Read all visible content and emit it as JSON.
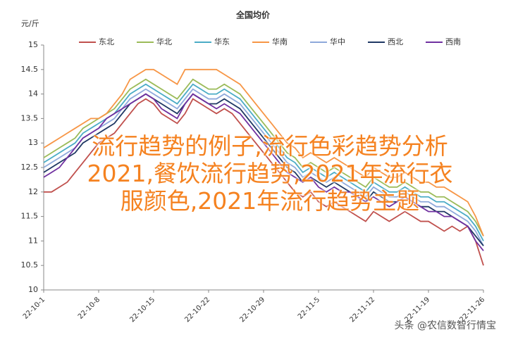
{
  "chart_data": {
    "type": "line",
    "title": "全国均价",
    "y_label": "元/斤",
    "categories": [
      "22-10-1",
      null,
      null,
      null,
      null,
      null,
      null,
      "22-10-8",
      null,
      null,
      null,
      null,
      null,
      null,
      "22-10-15",
      null,
      null,
      null,
      null,
      null,
      null,
      "22-10-22",
      null,
      null,
      null,
      null,
      null,
      null,
      "22-10-29",
      null,
      null,
      null,
      null,
      null,
      null,
      "22-11-5",
      null,
      null,
      null,
      null,
      null,
      null,
      "22-11-12",
      null,
      null,
      null,
      null,
      null,
      null,
      "22-11-19",
      null,
      null,
      null,
      null,
      null,
      null,
      "22-11-26"
    ],
    "ylim": [
      10,
      15
    ],
    "yticks": [
      10,
      10.5,
      11,
      11.5,
      12,
      12.5,
      13,
      13.5,
      14,
      14.5,
      15
    ],
    "series": [
      {
        "name": "东北",
        "color": "#c0504d",
        "values": [
          12.0,
          12.0,
          12.1,
          12.2,
          12.4,
          12.6,
          12.8,
          13.0,
          13.1,
          13.2,
          13.4,
          13.6,
          13.8,
          13.9,
          13.8,
          13.6,
          13.5,
          13.4,
          13.6,
          13.9,
          13.8,
          13.7,
          13.6,
          13.7,
          13.6,
          13.4,
          13.2,
          13.0,
          12.8,
          12.6,
          12.4,
          12.2,
          12.0,
          11.9,
          12.0,
          11.8,
          11.7,
          11.8,
          11.7,
          11.6,
          11.5,
          11.4,
          11.6,
          11.5,
          11.4,
          11.5,
          11.6,
          11.5,
          11.4,
          11.4,
          11.3,
          11.2,
          11.3,
          11.2,
          11.3,
          11.0,
          10.5
        ]
      },
      {
        "name": "华北",
        "color": "#9bbb59",
        "values": [
          12.7,
          12.8,
          12.9,
          13.0,
          13.1,
          13.3,
          13.4,
          13.5,
          13.6,
          13.7,
          13.9,
          14.1,
          14.2,
          14.3,
          14.2,
          14.1,
          14.0,
          13.9,
          14.1,
          14.3,
          14.2,
          14.1,
          14.1,
          14.2,
          14.1,
          14.0,
          13.8,
          13.6,
          13.4,
          13.2,
          13.0,
          12.8,
          12.7,
          12.5,
          12.6,
          12.5,
          12.4,
          12.5,
          12.4,
          12.3,
          12.2,
          12.1,
          12.3,
          12.2,
          12.1,
          12.1,
          12.2,
          12.1,
          12.0,
          12.0,
          11.9,
          11.9,
          11.8,
          11.7,
          11.6,
          11.4,
          11.1
        ]
      },
      {
        "name": "华东",
        "color": "#4bacc6",
        "values": [
          12.6,
          12.7,
          12.8,
          12.9,
          13.0,
          13.2,
          13.3,
          13.4,
          13.5,
          13.6,
          13.8,
          14.0,
          14.1,
          14.2,
          14.1,
          14.0,
          13.9,
          13.8,
          14.0,
          14.2,
          14.1,
          14.0,
          14.0,
          14.1,
          14.0,
          13.9,
          13.7,
          13.5,
          13.3,
          13.1,
          12.9,
          12.7,
          12.6,
          12.4,
          12.5,
          12.4,
          12.3,
          12.4,
          12.3,
          12.2,
          12.1,
          12.0,
          12.2,
          12.1,
          12.0,
          12.0,
          12.1,
          12.0,
          11.9,
          11.9,
          11.8,
          11.8,
          11.7,
          11.6,
          11.5,
          11.3,
          11.0
        ]
      },
      {
        "name": "华南",
        "color": "#f79646",
        "values": [
          12.9,
          13.0,
          13.1,
          13.2,
          13.3,
          13.4,
          13.5,
          13.5,
          13.6,
          13.8,
          14.0,
          14.3,
          14.4,
          14.5,
          14.5,
          14.4,
          14.3,
          14.2,
          14.5,
          14.5,
          14.5,
          14.5,
          14.5,
          14.4,
          14.3,
          14.2,
          14.0,
          13.8,
          13.6,
          13.4,
          13.2,
          13.0,
          12.9,
          12.7,
          12.8,
          12.7,
          12.6,
          12.7,
          12.6,
          12.5,
          12.4,
          12.3,
          12.5,
          12.4,
          12.3,
          12.3,
          12.4,
          12.3,
          12.2,
          12.2,
          12.1,
          12.1,
          12.0,
          11.9,
          11.8,
          11.5,
          11.1
        ]
      },
      {
        "name": "华中",
        "color": "#8ea9db",
        "values": [
          12.5,
          12.6,
          12.7,
          12.8,
          12.9,
          13.1,
          13.2,
          13.3,
          13.4,
          13.5,
          13.7,
          13.9,
          14.0,
          14.1,
          14.0,
          13.9,
          13.8,
          13.7,
          13.9,
          14.1,
          14.0,
          13.9,
          13.9,
          14.0,
          13.9,
          13.8,
          13.6,
          13.4,
          13.2,
          13.0,
          12.8,
          12.6,
          12.5,
          12.3,
          12.4,
          12.3,
          12.2,
          12.3,
          12.2,
          12.1,
          12.0,
          11.9,
          12.1,
          12.0,
          11.9,
          11.9,
          12.0,
          11.9,
          11.8,
          11.8,
          11.7,
          11.7,
          11.6,
          11.5,
          11.4,
          11.2,
          10.9
        ]
      },
      {
        "name": "西北",
        "color": "#1f3864",
        "values": [
          12.4,
          12.5,
          12.6,
          12.7,
          12.8,
          13.0,
          13.1,
          13.2,
          13.3,
          13.4,
          13.6,
          13.8,
          13.9,
          14.0,
          13.9,
          13.8,
          13.7,
          13.6,
          13.8,
          14.0,
          13.9,
          13.8,
          13.8,
          13.9,
          13.8,
          13.7,
          13.5,
          13.3,
          13.1,
          12.9,
          12.7,
          12.5,
          12.4,
          12.2,
          12.3,
          12.2,
          12.1,
          12.2,
          12.1,
          12.0,
          11.9,
          11.8,
          12.0,
          11.9,
          11.8,
          11.8,
          11.9,
          11.8,
          11.7,
          11.7,
          11.6,
          11.6,
          11.5,
          11.4,
          11.3,
          11.1,
          10.9
        ]
      },
      {
        "name": "西南",
        "color": "#7030a0",
        "values": [
          12.3,
          12.4,
          12.5,
          12.7,
          12.9,
          13.1,
          13.2,
          13.3,
          13.5,
          13.6,
          13.7,
          13.8,
          13.9,
          14.0,
          13.9,
          13.7,
          13.6,
          13.5,
          13.8,
          14.0,
          13.9,
          13.8,
          13.7,
          13.8,
          13.7,
          13.6,
          13.4,
          13.2,
          13.0,
          12.8,
          12.6,
          12.4,
          12.3,
          12.2,
          12.3,
          12.1,
          12.0,
          12.1,
          12.0,
          12.0,
          11.9,
          11.8,
          11.9,
          11.8,
          11.7,
          11.8,
          11.9,
          11.8,
          11.7,
          11.6,
          11.6,
          11.5,
          11.5,
          11.4,
          11.3,
          11.0,
          10.8
        ]
      }
    ]
  },
  "overlay_title": "流行趋势的例子,流行色彩趋势分析2021,餐饮流行趋势,2021年流行衣服颜色,2021年流行趋势主题",
  "footer": "头条 @农信数智行情宝"
}
